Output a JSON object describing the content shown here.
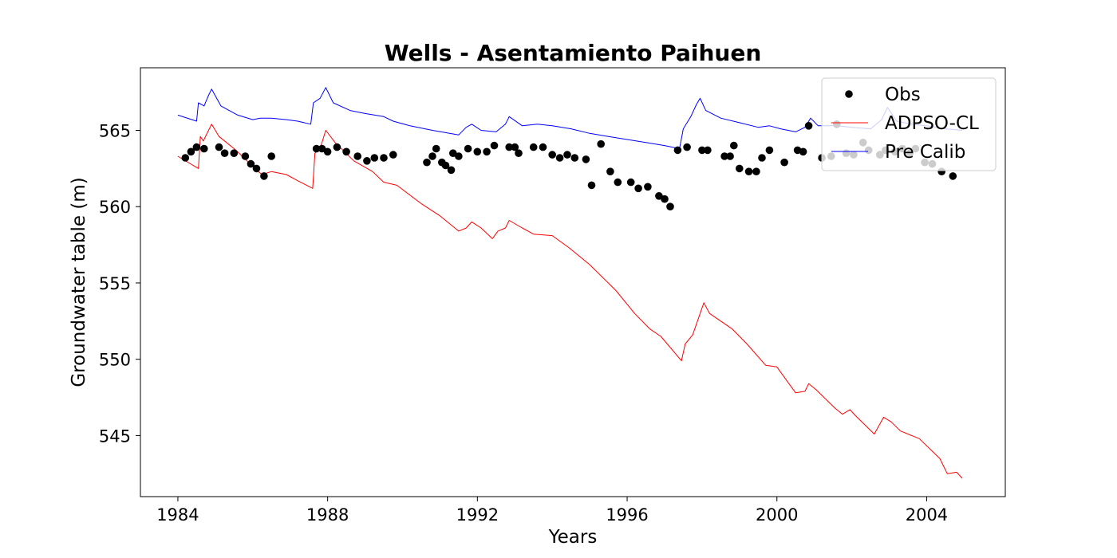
{
  "chart_data": {
    "type": "line",
    "title": "Wells - Asentamiento Paihuen",
    "xlabel": "Years",
    "ylabel": "Groundwater table (m)",
    "xlim": [
      1983.0,
      2006.1
    ],
    "ylim": [
      541.0,
      569.1
    ],
    "xticks": [
      1984,
      1988,
      1992,
      1996,
      2000,
      2004
    ],
    "yticks": [
      545,
      550,
      555,
      560,
      565
    ],
    "legend_position": "upper right",
    "grid": false,
    "series": [
      {
        "name": "Obs",
        "kind": "scatter",
        "color": "#000000",
        "points": [
          [
            1984.2,
            563.2
          ],
          [
            1984.35,
            563.6
          ],
          [
            1984.5,
            563.9
          ],
          [
            1984.7,
            563.8
          ],
          [
            1985.1,
            563.9
          ],
          [
            1985.25,
            563.5
          ],
          [
            1985.5,
            563.5
          ],
          [
            1985.8,
            563.3
          ],
          [
            1985.95,
            562.8
          ],
          [
            1986.1,
            562.5
          ],
          [
            1986.3,
            562.0
          ],
          [
            1986.5,
            563.3
          ],
          [
            1987.7,
            563.8
          ],
          [
            1987.85,
            563.8
          ],
          [
            1988.0,
            563.6
          ],
          [
            1988.25,
            563.9
          ],
          [
            1988.5,
            563.6
          ],
          [
            1988.8,
            563.3
          ],
          [
            1989.05,
            563.0
          ],
          [
            1989.25,
            563.2
          ],
          [
            1989.5,
            563.2
          ],
          [
            1989.75,
            563.4
          ],
          [
            1990.65,
            562.9
          ],
          [
            1990.8,
            563.3
          ],
          [
            1990.9,
            563.8
          ],
          [
            1991.05,
            562.9
          ],
          [
            1991.15,
            562.7
          ],
          [
            1991.3,
            562.4
          ],
          [
            1991.35,
            563.5
          ],
          [
            1991.5,
            563.3
          ],
          [
            1991.75,
            563.8
          ],
          [
            1992.0,
            563.6
          ],
          [
            1992.25,
            563.6
          ],
          [
            1992.45,
            564.0
          ],
          [
            1992.85,
            563.9
          ],
          [
            1993.0,
            563.9
          ],
          [
            1993.1,
            563.5
          ],
          [
            1993.5,
            563.9
          ],
          [
            1993.75,
            563.9
          ],
          [
            1994.0,
            563.4
          ],
          [
            1994.2,
            563.2
          ],
          [
            1994.4,
            563.4
          ],
          [
            1994.6,
            563.2
          ],
          [
            1994.9,
            563.1
          ],
          [
            1995.05,
            561.4
          ],
          [
            1995.3,
            564.1
          ],
          [
            1995.55,
            562.3
          ],
          [
            1995.75,
            561.6
          ],
          [
            1996.1,
            561.6
          ],
          [
            1996.3,
            561.2
          ],
          [
            1996.55,
            561.3
          ],
          [
            1996.85,
            560.7
          ],
          [
            1997.0,
            560.5
          ],
          [
            1997.15,
            560.0
          ],
          [
            1997.35,
            563.7
          ],
          [
            1997.6,
            563.9
          ],
          [
            1998.0,
            563.7
          ],
          [
            1998.15,
            563.7
          ],
          [
            1998.6,
            563.3
          ],
          [
            1998.75,
            563.3
          ],
          [
            1998.85,
            564.0
          ],
          [
            1999.0,
            562.5
          ],
          [
            1999.25,
            562.3
          ],
          [
            1999.45,
            562.3
          ],
          [
            1999.6,
            563.2
          ],
          [
            1999.8,
            563.7
          ],
          [
            2000.2,
            562.9
          ],
          [
            2000.55,
            563.7
          ],
          [
            2000.7,
            563.6
          ],
          [
            2000.85,
            565.3
          ],
          [
            2001.2,
            563.2
          ],
          [
            2001.45,
            563.3
          ],
          [
            2001.6,
            565.4
          ],
          [
            2001.85,
            563.5
          ],
          [
            2002.05,
            563.4
          ],
          [
            2002.3,
            564.2
          ],
          [
            2002.45,
            563.7
          ],
          [
            2002.75,
            563.4
          ],
          [
            2002.9,
            563.7
          ],
          [
            2003.15,
            563.6
          ],
          [
            2003.35,
            563.8
          ],
          [
            2003.55,
            563.5
          ],
          [
            2003.7,
            563.8
          ],
          [
            2003.95,
            562.9
          ],
          [
            2004.15,
            562.8
          ],
          [
            2004.4,
            562.3
          ],
          [
            2004.7,
            562.0
          ]
        ]
      },
      {
        "name": "ADPSO-CL",
        "kind": "line",
        "color": "#ff0000",
        "points": [
          [
            1984.0,
            563.3
          ],
          [
            1984.55,
            562.5
          ],
          [
            1984.6,
            564.6
          ],
          [
            1984.68,
            564.3
          ],
          [
            1984.82,
            565.0
          ],
          [
            1984.9,
            565.4
          ],
          [
            1985.1,
            564.6
          ],
          [
            1985.55,
            563.7
          ],
          [
            1986.1,
            562.4
          ],
          [
            1986.25,
            562.1
          ],
          [
            1986.5,
            562.3
          ],
          [
            1986.9,
            562.1
          ],
          [
            1987.2,
            561.7
          ],
          [
            1987.6,
            561.2
          ],
          [
            1987.66,
            563.5
          ],
          [
            1987.8,
            563.8
          ],
          [
            1987.95,
            565.0
          ],
          [
            1988.2,
            564.2
          ],
          [
            1988.7,
            563.0
          ],
          [
            1989.2,
            562.3
          ],
          [
            1989.5,
            561.6
          ],
          [
            1989.85,
            561.4
          ],
          [
            1990.5,
            560.2
          ],
          [
            1991.0,
            559.4
          ],
          [
            1991.5,
            558.4
          ],
          [
            1991.7,
            558.6
          ],
          [
            1991.85,
            559.0
          ],
          [
            1992.1,
            558.6
          ],
          [
            1992.4,
            557.9
          ],
          [
            1992.55,
            558.4
          ],
          [
            1992.75,
            558.6
          ],
          [
            1992.85,
            559.1
          ],
          [
            1993.2,
            558.6
          ],
          [
            1993.5,
            558.2
          ],
          [
            1994.0,
            558.1
          ],
          [
            1994.45,
            557.3
          ],
          [
            1995.0,
            556.2
          ],
          [
            1995.7,
            554.5
          ],
          [
            1996.2,
            553.0
          ],
          [
            1996.6,
            552.0
          ],
          [
            1996.9,
            551.5
          ],
          [
            1997.45,
            549.9
          ],
          [
            1997.55,
            551.0
          ],
          [
            1997.75,
            551.6
          ],
          [
            1997.95,
            553.0
          ],
          [
            1998.05,
            553.7
          ],
          [
            1998.2,
            553.0
          ],
          [
            1998.8,
            552.0
          ],
          [
            1999.2,
            551.0
          ],
          [
            1999.7,
            549.6
          ],
          [
            2000.0,
            549.5
          ],
          [
            2000.5,
            547.8
          ],
          [
            2000.75,
            547.9
          ],
          [
            2000.85,
            548.4
          ],
          [
            2001.05,
            548.0
          ],
          [
            2001.55,
            546.8
          ],
          [
            2001.75,
            546.4
          ],
          [
            2001.95,
            546.7
          ],
          [
            2002.1,
            546.3
          ],
          [
            2002.6,
            545.1
          ],
          [
            2002.85,
            546.2
          ],
          [
            2003.05,
            545.9
          ],
          [
            2003.3,
            545.3
          ],
          [
            2003.8,
            544.8
          ],
          [
            2004.35,
            543.5
          ],
          [
            2004.55,
            542.5
          ],
          [
            2004.8,
            542.6
          ],
          [
            2004.95,
            542.2
          ]
        ]
      },
      {
        "name": "Pre Calib",
        "kind": "line",
        "color": "#0000ff",
        "points": [
          [
            1984.0,
            566.0
          ],
          [
            1984.5,
            565.6
          ],
          [
            1984.55,
            566.8
          ],
          [
            1984.7,
            566.6
          ],
          [
            1984.82,
            567.3
          ],
          [
            1984.9,
            567.7
          ],
          [
            1985.15,
            566.6
          ],
          [
            1985.6,
            566.0
          ],
          [
            1986.0,
            565.7
          ],
          [
            1986.2,
            565.8
          ],
          [
            1986.5,
            565.8
          ],
          [
            1986.9,
            565.7
          ],
          [
            1987.2,
            565.6
          ],
          [
            1987.55,
            565.4
          ],
          [
            1987.62,
            566.8
          ],
          [
            1987.8,
            567.1
          ],
          [
            1987.95,
            567.8
          ],
          [
            1988.15,
            566.8
          ],
          [
            1988.6,
            566.3
          ],
          [
            1989.0,
            566.1
          ],
          [
            1989.5,
            565.9
          ],
          [
            1989.75,
            565.6
          ],
          [
            1990.2,
            565.3
          ],
          [
            1990.8,
            565.0
          ],
          [
            1991.5,
            564.7
          ],
          [
            1991.7,
            565.2
          ],
          [
            1991.85,
            565.4
          ],
          [
            1992.1,
            565.0
          ],
          [
            1992.5,
            564.9
          ],
          [
            1992.75,
            565.4
          ],
          [
            1992.85,
            565.9
          ],
          [
            1993.2,
            565.3
          ],
          [
            1993.6,
            565.4
          ],
          [
            1994.0,
            565.3
          ],
          [
            1994.5,
            565.1
          ],
          [
            1995.0,
            564.8
          ],
          [
            1995.5,
            564.6
          ],
          [
            1996.0,
            564.4
          ],
          [
            1996.5,
            564.2
          ],
          [
            1997.0,
            564.0
          ],
          [
            1997.4,
            563.8
          ],
          [
            1997.5,
            565.1
          ],
          [
            1997.7,
            565.9
          ],
          [
            1997.85,
            566.7
          ],
          [
            1997.95,
            567.1
          ],
          [
            1998.1,
            566.3
          ],
          [
            1998.5,
            565.8
          ],
          [
            1999.0,
            565.5
          ],
          [
            1999.5,
            565.2
          ],
          [
            1999.8,
            565.3
          ],
          [
            2000.1,
            565.1
          ],
          [
            2000.5,
            564.9
          ],
          [
            2000.75,
            565.2
          ],
          [
            2000.9,
            565.8
          ],
          [
            2001.1,
            565.3
          ],
          [
            2001.6,
            565.3
          ],
          [
            2002.0,
            565.2
          ],
          [
            2002.5,
            565.1
          ],
          [
            2002.8,
            565.7
          ],
          [
            2002.95,
            566.5
          ],
          [
            2003.2,
            565.6
          ],
          [
            2003.6,
            565.4
          ],
          [
            2004.0,
            565.3
          ],
          [
            2004.5,
            565.1
          ],
          [
            2004.95,
            565.0
          ]
        ]
      }
    ]
  }
}
